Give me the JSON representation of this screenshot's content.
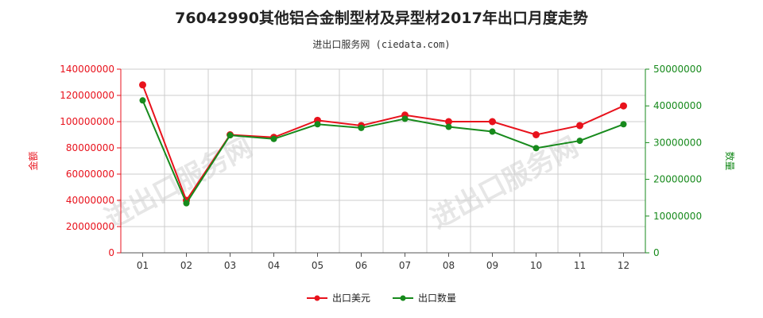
{
  "title": "76042990其他铝合金制型材及异型材2017年出口月度走势",
  "subtitle": "进出口服务网 (ciedata.com)",
  "watermark": "进出口服务网",
  "colors": {
    "series1": "#e8121c",
    "series2": "#178a1c",
    "grid": "#cccccc",
    "axis": "#555555"
  },
  "chart_data": {
    "type": "line",
    "categories": [
      "01",
      "02",
      "03",
      "04",
      "05",
      "06",
      "07",
      "08",
      "09",
      "10",
      "11",
      "12"
    ],
    "y_left": {
      "label": "金额",
      "ylim": [
        0,
        140000000
      ],
      "ticks": [
        "0",
        "20000000",
        "40000000",
        "60000000",
        "80000000",
        "100000000",
        "120000000",
        "140000000"
      ]
    },
    "y_right": {
      "label": "数量",
      "ylim": [
        0,
        50000000
      ],
      "ticks": [
        "0",
        "10000000",
        "20000000",
        "30000000",
        "40000000",
        "50000000"
      ]
    },
    "grid": true,
    "legend_position": "bottom",
    "series": [
      {
        "name": "出口美元",
        "axis": "left",
        "values": [
          128000000,
          40000000,
          90000000,
          88000000,
          101000000,
          97000000,
          105000000,
          100000000,
          100000000,
          90000000,
          97000000,
          112000000
        ]
      },
      {
        "name": "出口数量",
        "axis": "right",
        "values": [
          41500000,
          13500000,
          32000000,
          31000000,
          35000000,
          34000000,
          36500000,
          34300000,
          33000000,
          28500000,
          30500000,
          35000000
        ]
      }
    ]
  }
}
